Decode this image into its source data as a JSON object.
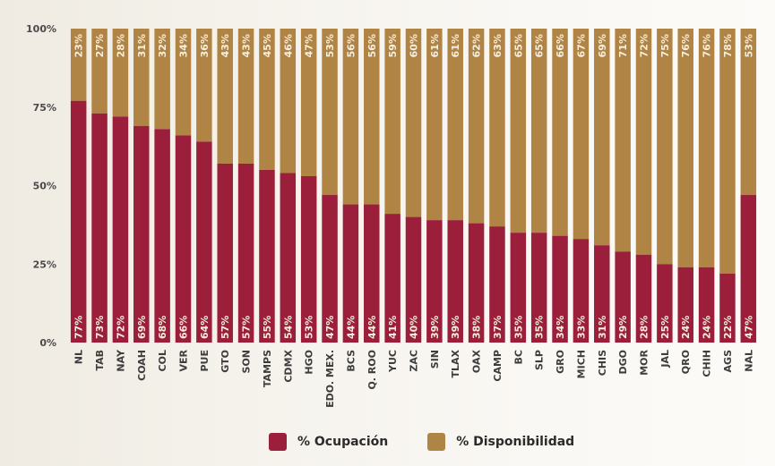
{
  "chart_data": {
    "type": "bar",
    "stacked": true,
    "normalized": true,
    "title": "",
    "xlabel": "",
    "ylabel": "",
    "ylim": [
      0,
      100
    ],
    "yticks": [
      "0%",
      "25%",
      "50%",
      "75%",
      "100%"
    ],
    "yticks_values": [
      0,
      25,
      50,
      75,
      100
    ],
    "grid": false,
    "legend_position": "bottom-center",
    "categories": [
      "NL",
      "TAB",
      "NAY",
      "COAH",
      "COL",
      "VER",
      "PUE",
      "GTO",
      "SON",
      "TAMPS",
      "CDMX",
      "HGO",
      "EDO. MEX.",
      "BCS",
      "Q. ROO",
      "YUC",
      "ZAC",
      "SIN",
      "TLAX",
      "OAX",
      "CAMP",
      "BC",
      "SLP",
      "GRO",
      "MICH",
      "CHIS",
      "DGO",
      "MOR",
      "JAL",
      "QRO",
      "CHIH",
      "AGS",
      "NAL"
    ],
    "series": [
      {
        "name": "% Ocupación",
        "color": "#9b1f3a",
        "values": [
          77,
          73,
          72,
          69,
          68,
          66,
          64,
          57,
          57,
          55,
          54,
          53,
          47,
          44,
          44,
          41,
          40,
          39,
          39,
          38,
          37,
          35,
          35,
          34,
          33,
          31,
          29,
          28,
          25,
          24,
          24,
          22,
          47
        ],
        "labels": [
          "77%",
          "73%",
          "72%",
          "69%",
          "68%",
          "66%",
          "64%",
          "57%",
          "57%",
          "55%",
          "54%",
          "53%",
          "47%",
          "44%",
          "44%",
          "41%",
          "40%",
          "39%",
          "39%",
          "38%",
          "37%",
          "35%",
          "35%",
          "34%",
          "33%",
          "31%",
          "29%",
          "28%",
          "25%",
          "24%",
          "24%",
          "22%",
          "47%"
        ]
      },
      {
        "name": "% Disponibilidad",
        "color": "#b08444",
        "values": [
          23,
          27,
          28,
          31,
          32,
          34,
          36,
          43,
          43,
          45,
          46,
          47,
          53,
          56,
          56,
          59,
          60,
          61,
          61,
          62,
          63,
          65,
          65,
          66,
          67,
          69,
          71,
          72,
          75,
          76,
          76,
          78,
          53
        ],
        "labels": [
          "23%",
          "27%",
          "28%",
          "31%",
          "32%",
          "34%",
          "36%",
          "43%",
          "43%",
          "45%",
          "46%",
          "47%",
          "53%",
          "56%",
          "56%",
          "59%",
          "60%",
          "61%",
          "61%",
          "62%",
          "63%",
          "65%",
          "65%",
          "66%",
          "67%",
          "69%",
          "71%",
          "72%",
          "75%",
          "76%",
          "76%",
          "78%",
          "53%"
        ]
      }
    ]
  },
  "legend": {
    "items": [
      {
        "label": "% Ocupación",
        "color": "#9b1f3a"
      },
      {
        "label": "% Disponibilidad",
        "color": "#b08444"
      }
    ]
  }
}
